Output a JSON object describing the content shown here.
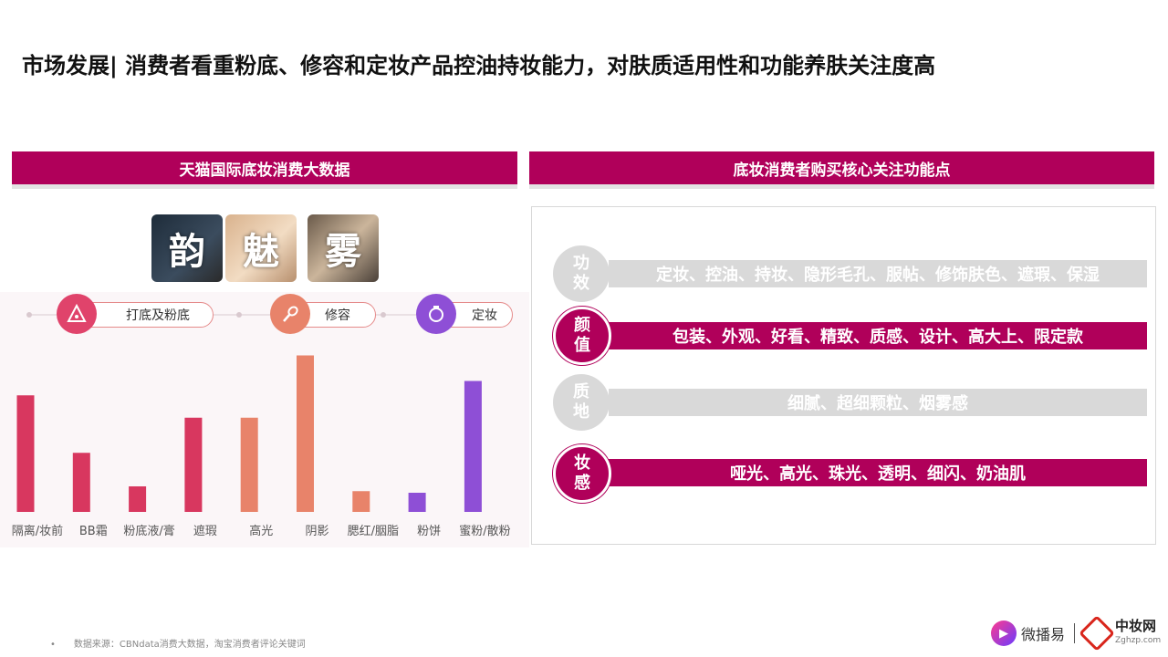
{
  "title": "市场发展| 消费者看重粉底、修容和定妆产品控油持妆能力，对肤质适用性和功能养肤关注度高",
  "left_panel": {
    "header": "天猫国际底妆消费大数据",
    "tiles": [
      "韵",
      "魅",
      "雾"
    ],
    "category_groups": [
      {
        "label": "打底及粉底",
        "icon": "triangle-sponge-icon",
        "color": "#e0436b"
      },
      {
        "label": "修容",
        "icon": "brush-icon",
        "color": "#e8836a"
      },
      {
        "label": "定妆",
        "icon": "powder-compact-icon",
        "color": "#8e4fd6"
      }
    ]
  },
  "chart_data": {
    "type": "bar",
    "categories": [
      "隔离/妆前",
      "BB霜",
      "粉底液/膏",
      "遮瑕",
      "高光",
      "阴影",
      "腮红/胭脂",
      "粉饼",
      "蜜粉/散粉"
    ],
    "values": [
      73,
      37,
      16,
      59,
      59,
      98,
      13,
      12,
      82
    ],
    "colors": [
      "#d8375f",
      "#d8375f",
      "#d8375f",
      "#d8375f",
      "#e8836a",
      "#e8836a",
      "#e8836a",
      "#8e4fd6",
      "#8e4fd6"
    ],
    "title": "",
    "xlabel": "",
    "ylabel": "",
    "ylim": [
      0,
      100
    ],
    "grid": false
  },
  "right_panel": {
    "header": "底妆消费者购买核心关注功能点",
    "rows": [
      {
        "label1": "功",
        "label2": "效",
        "text": "定妆、控油、持妆、隐形毛孔、服帖、修饰肤色、遮瑕、保湿",
        "style": "gray"
      },
      {
        "label1": "颜",
        "label2": "值",
        "text": "包装、外观、好看、精致、质感、设计、高大上、限定款",
        "style": "pink"
      },
      {
        "label1": "质",
        "label2": "地",
        "text": "细腻、超细颗粒、烟雾感",
        "style": "gray"
      },
      {
        "label1": "妆",
        "label2": "感",
        "text": "哑光、高光、珠光、透明、细闪、奶油肌",
        "style": "pink"
      }
    ]
  },
  "source": "数据来源：CBNdata消费大数据，淘宝消费者评论关键词",
  "logos": {
    "brand1": "微播易",
    "brand2_main": "中妆网",
    "brand2_sub": "Zghzp.com"
  }
}
